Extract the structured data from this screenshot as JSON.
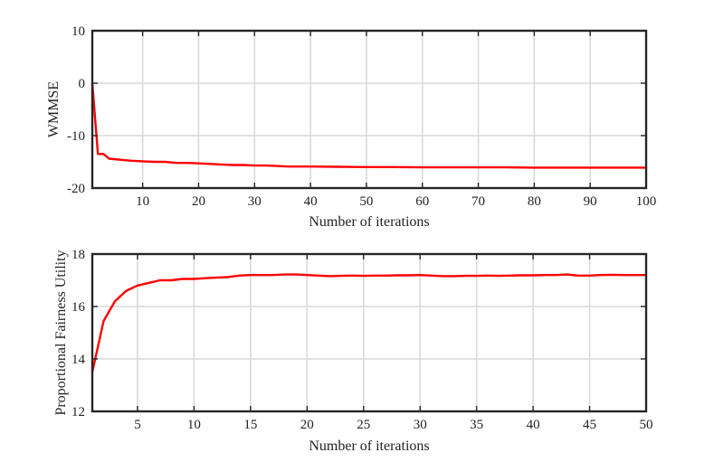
{
  "chart_data": [
    {
      "type": "line",
      "xlabel": "Number of iterations",
      "ylabel": "WMMSE",
      "xlim": [
        1,
        100
      ],
      "ylim": [
        -20,
        10
      ],
      "xticks": [
        10,
        20,
        30,
        40,
        50,
        60,
        70,
        80,
        90,
        100
      ],
      "yticks": [
        -20,
        -10,
        0,
        10
      ],
      "grid": true,
      "line_color": "#ff0000",
      "series": [
        {
          "x": [
            1,
            2,
            3,
            4,
            5,
            6,
            8,
            10,
            12,
            14,
            16,
            18,
            20,
            22,
            24,
            26,
            28,
            30,
            32,
            34,
            36,
            38,
            40,
            45,
            50,
            55,
            60,
            65,
            70,
            75,
            80,
            85,
            90,
            95,
            100
          ],
          "y": [
            0,
            -13.5,
            -13.5,
            -14.4,
            -14.5,
            -14.6,
            -14.8,
            -14.9,
            -15.0,
            -15.0,
            -15.2,
            -15.2,
            -15.3,
            -15.4,
            -15.5,
            -15.6,
            -15.6,
            -15.7,
            -15.7,
            -15.8,
            -15.9,
            -15.9,
            -15.9,
            -15.95,
            -16.0,
            -16.0,
            -16.05,
            -16.05,
            -16.05,
            -16.05,
            -16.1,
            -16.1,
            -16.1,
            -16.1,
            -16.1
          ]
        }
      ]
    },
    {
      "type": "line",
      "xlabel": "Number of iterations",
      "ylabel": "Proportional Fairness Utility",
      "xlim": [
        1,
        50
      ],
      "ylim": [
        12,
        18
      ],
      "xticks": [
        5,
        10,
        15,
        20,
        25,
        30,
        35,
        40,
        45,
        50
      ],
      "yticks": [
        12,
        14,
        16,
        18
      ],
      "grid": true,
      "line_color": "#ff0000",
      "series": [
        {
          "x": [
            1,
            2,
            3,
            4,
            5,
            6,
            7,
            8,
            9,
            10,
            11,
            12,
            13,
            14,
            15,
            16,
            17,
            18,
            19,
            20,
            21,
            22,
            23,
            24,
            25,
            26,
            27,
            28,
            29,
            30,
            31,
            32,
            33,
            34,
            35,
            36,
            37,
            38,
            39,
            40,
            41,
            42,
            43,
            44,
            45,
            46,
            47,
            48,
            49,
            50
          ],
          "y": [
            13.5,
            15.45,
            16.2,
            16.6,
            16.8,
            16.9,
            17.0,
            17.0,
            17.05,
            17.05,
            17.08,
            17.1,
            17.12,
            17.18,
            17.2,
            17.2,
            17.2,
            17.22,
            17.22,
            17.2,
            17.18,
            17.16,
            17.17,
            17.18,
            17.17,
            17.18,
            17.18,
            17.19,
            17.19,
            17.2,
            17.18,
            17.16,
            17.16,
            17.17,
            17.17,
            17.18,
            17.17,
            17.18,
            17.19,
            17.19,
            17.2,
            17.2,
            17.22,
            17.18,
            17.18,
            17.2,
            17.21,
            17.2,
            17.2,
            17.2
          ]
        }
      ]
    }
  ]
}
